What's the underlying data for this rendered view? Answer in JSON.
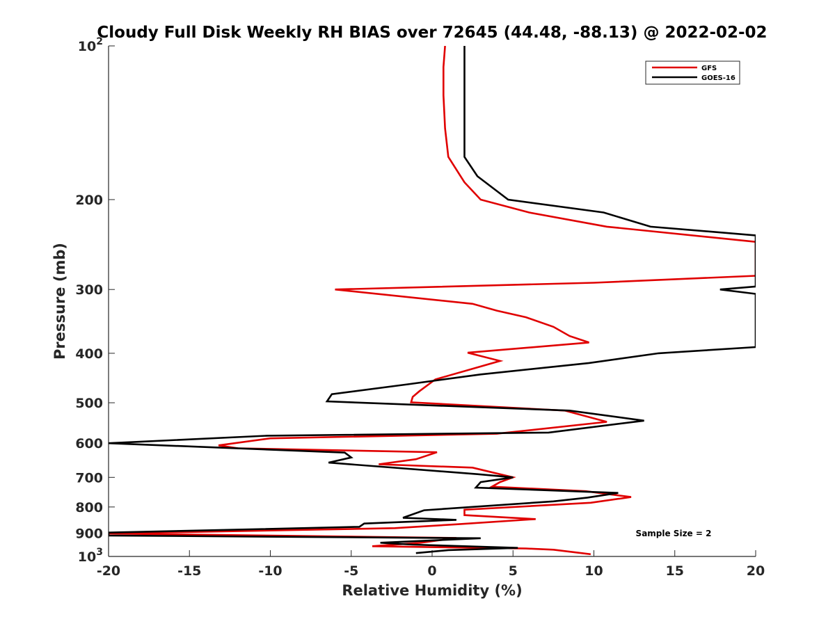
{
  "chart_data": {
    "type": "line",
    "title": "Cloudy Full Disk Weekly RH BIAS over 72645 (44.48, -88.13) @ 2022-02-02",
    "xlabel": "Relative Humidity (%)",
    "ylabel": "Pressure (mb)",
    "xlim": [
      -20,
      20
    ],
    "ylim": [
      100,
      1000
    ],
    "y_scale": "log",
    "y_reversed": true,
    "x_ticks": [
      -20,
      -15,
      -10,
      -5,
      0,
      5,
      10,
      15,
      20
    ],
    "x_tick_labels": [
      "-20",
      "-15",
      "-10",
      "-5",
      "0",
      "5",
      "10",
      "15",
      "20"
    ],
    "y_ticks": [
      100,
      200,
      300,
      400,
      500,
      600,
      700,
      800,
      900,
      1000
    ],
    "y_tick_labels": [
      {
        "base": "10",
        "exp": "2"
      },
      {
        "base": "200",
        "exp": ""
      },
      {
        "base": "300",
        "exp": ""
      },
      {
        "base": "400",
        "exp": ""
      },
      {
        "base": "500",
        "exp": ""
      },
      {
        "base": "600",
        "exp": ""
      },
      {
        "base": "700",
        "exp": ""
      },
      {
        "base": "800",
        "exp": ""
      },
      {
        "base": "900",
        "exp": ""
      },
      {
        "base": "10",
        "exp": "3"
      }
    ],
    "grid": false,
    "legend": "top-right",
    "annotation": "Sample Size = 2",
    "series": [
      {
        "name": "GFS",
        "color": "#e00000",
        "points": [
          [
            0.8,
            100
          ],
          [
            0.7,
            110
          ],
          [
            0.7,
            125
          ],
          [
            0.8,
            145
          ],
          [
            1.0,
            165
          ],
          [
            2.0,
            185
          ],
          [
            3.0,
            200
          ],
          [
            6.0,
            212
          ],
          [
            10.8,
            226
          ],
          [
            20,
            242
          ],
          [
            20,
            282
          ],
          [
            10.0,
            291
          ],
          [
            -6.0,
            300
          ],
          [
            2.5,
            320
          ],
          [
            4.0,
            330
          ],
          [
            5.8,
            340
          ],
          [
            7.5,
            355
          ],
          [
            8.5,
            370
          ],
          [
            9.7,
            381
          ],
          [
            2.2,
            399
          ],
          [
            4.2,
            414
          ],
          [
            0.2,
            450
          ],
          [
            -0.8,
            475
          ],
          [
            -1.2,
            487
          ],
          [
            -1.3,
            499
          ],
          [
            8.2,
            518
          ],
          [
            10.8,
            545
          ],
          [
            4.0,
            575
          ],
          [
            -10.0,
            587
          ],
          [
            -13.2,
            606
          ],
          [
            -12.0,
            614
          ],
          [
            0.3,
            625
          ],
          [
            -1.0,
            645
          ],
          [
            -3.3,
            660
          ],
          [
            2.5,
            670
          ],
          [
            5.0,
            700
          ],
          [
            4.2,
            715
          ],
          [
            3.7,
            730
          ],
          [
            9.5,
            745
          ],
          [
            12.3,
            765
          ],
          [
            9.8,
            785
          ],
          [
            2.0,
            810
          ],
          [
            2.0,
            830
          ],
          [
            6.4,
            845
          ],
          [
            1.5,
            865
          ],
          [
            -2.3,
            880
          ],
          [
            -20,
            902
          ],
          [
            1.5,
            920
          ],
          [
            -0.7,
            940
          ],
          [
            -3.7,
            955
          ],
          [
            5.8,
            965
          ],
          [
            7.5,
            970
          ],
          [
            9.8,
            990
          ]
        ]
      },
      {
        "name": "GOES-16",
        "color": "#000000",
        "points": [
          [
            2.0,
            100
          ],
          [
            2.0,
            120
          ],
          [
            2.0,
            145
          ],
          [
            2.0,
            165
          ],
          [
            2.8,
            180
          ],
          [
            4.7,
            200
          ],
          [
            10.6,
            212
          ],
          [
            13.5,
            226
          ],
          [
            20,
            235
          ],
          [
            20,
            296
          ],
          [
            17.8,
            300
          ],
          [
            20,
            306
          ],
          [
            20,
            389
          ],
          [
            14.0,
            400
          ],
          [
            9.7,
            418
          ],
          [
            3.0,
            440
          ],
          [
            -1.5,
            460
          ],
          [
            -6.2,
            481
          ],
          [
            -6.5,
            497
          ],
          [
            8.5,
            518
          ],
          [
            13.1,
            542
          ],
          [
            7.2,
            572
          ],
          [
            -10.2,
            580
          ],
          [
            -20,
            600
          ],
          [
            -5.4,
            626
          ],
          [
            -5.0,
            640
          ],
          [
            -6.4,
            655
          ],
          [
            2.8,
            690
          ],
          [
            5.0,
            700
          ],
          [
            3.0,
            715
          ],
          [
            2.7,
            733
          ],
          [
            11.5,
            751
          ],
          [
            9.6,
            767
          ],
          [
            7.5,
            780
          ],
          [
            -0.5,
            812
          ],
          [
            -1.8,
            840
          ],
          [
            1.5,
            848
          ],
          [
            -4.2,
            862
          ],
          [
            -4.5,
            875
          ],
          [
            -20,
            898
          ],
          [
            -20,
            910
          ],
          [
            3.0,
            921
          ],
          [
            -3.2,
            940
          ],
          [
            -1.2,
            948
          ],
          [
            5.3,
            962
          ],
          [
            1.0,
            972
          ],
          [
            -1.0,
            985
          ]
        ]
      }
    ]
  }
}
